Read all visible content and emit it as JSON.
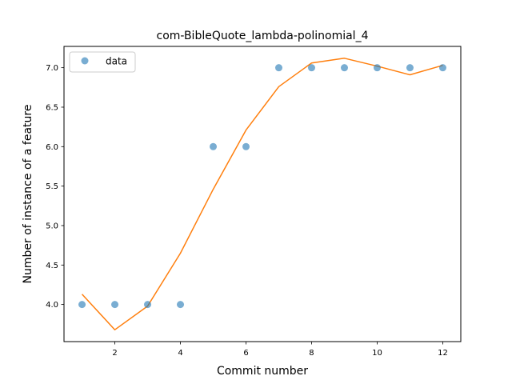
{
  "chart_data": {
    "type": "line",
    "title": "com-BibleQuote_lambda-polinomial_4",
    "xlabel": "Commit number",
    "ylabel": "Number of instance of a feature",
    "xlim": [
      0.45,
      12.55
    ],
    "ylim": [
      3.53,
      7.27
    ],
    "xticks": [
      2,
      4,
      6,
      8,
      10,
      12
    ],
    "xtick_labels": [
      "2",
      "4",
      "6",
      "8",
      "10",
      "12"
    ],
    "yticks": [
      4.0,
      4.5,
      5.0,
      5.5,
      6.0,
      6.5,
      7.0
    ],
    "ytick_labels": [
      "4.0",
      "4.5",
      "5.0",
      "5.5",
      "6.0",
      "6.5",
      "7.0"
    ],
    "grid": false,
    "legend_position": "top-left",
    "series": [
      {
        "name": "data",
        "kind": "scatter",
        "color": "#1f77b4",
        "x": [
          1,
          2,
          3,
          4,
          5,
          6,
          7,
          8,
          9,
          10,
          11,
          12
        ],
        "y": [
          4,
          4,
          4,
          4,
          6,
          6,
          7,
          7,
          7,
          7,
          7,
          7
        ]
      },
      {
        "kind": "line",
        "color": "#ff7f0e",
        "x": [
          1,
          2,
          3,
          4,
          5,
          6,
          7,
          8,
          9,
          10,
          11,
          12
        ],
        "y": [
          4.13,
          3.68,
          3.98,
          4.65,
          5.46,
          6.21,
          6.76,
          7.06,
          7.12,
          7.02,
          6.91,
          7.03
        ]
      }
    ]
  }
}
